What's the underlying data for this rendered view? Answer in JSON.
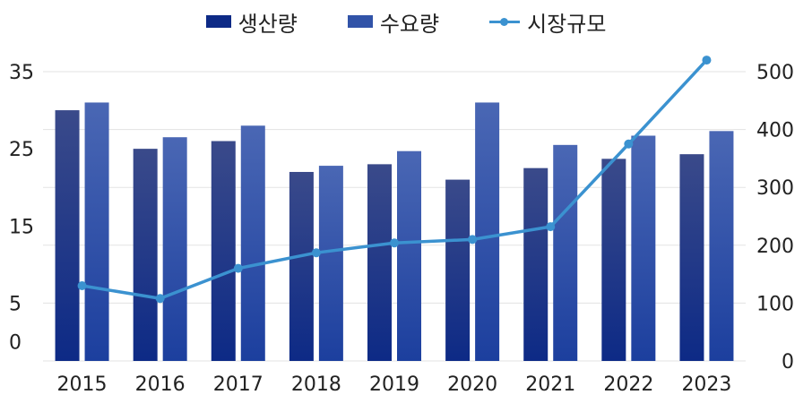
{
  "legend": {
    "production": "생산량",
    "demand": "수요량",
    "market": "시장규모"
  },
  "colors": {
    "production_top": "#3a4a8a",
    "production_bottom": "#0d2a86",
    "demand_top": "#4a67b4",
    "demand_bottom": "#1c3f9e",
    "line": "#3b92d0"
  },
  "chart_data": {
    "type": "bar",
    "categories": [
      "2015",
      "2016",
      "2017",
      "2018",
      "2019",
      "2020",
      "2021",
      "2022",
      "2023"
    ],
    "series": [
      {
        "name": "생산량",
        "type": "bar",
        "axis": "left",
        "values": [
          30,
          25,
          26,
          22,
          23,
          21,
          22.5,
          23.7,
          24.3
        ]
      },
      {
        "name": "수요량",
        "type": "bar",
        "axis": "left",
        "values": [
          31,
          26.5,
          28,
          22.8,
          24.7,
          31,
          25.5,
          26.7,
          27.3
        ]
      },
      {
        "name": "시장규모",
        "type": "line",
        "axis": "right",
        "values": [
          130,
          108,
          160,
          187,
          204,
          210,
          232,
          375,
          520
        ]
      }
    ],
    "left_axis": {
      "ticks": [
        "0",
        "5",
        "15",
        "25",
        "35"
      ],
      "tick_values": [
        0,
        5,
        15,
        25,
        35
      ]
    },
    "right_axis": {
      "ticks": [
        "0",
        "100",
        "200",
        "300",
        "400",
        "500"
      ],
      "tick_values": [
        0,
        100,
        200,
        300,
        400,
        500
      ]
    },
    "grid": true,
    "legend_position": "top-center"
  }
}
